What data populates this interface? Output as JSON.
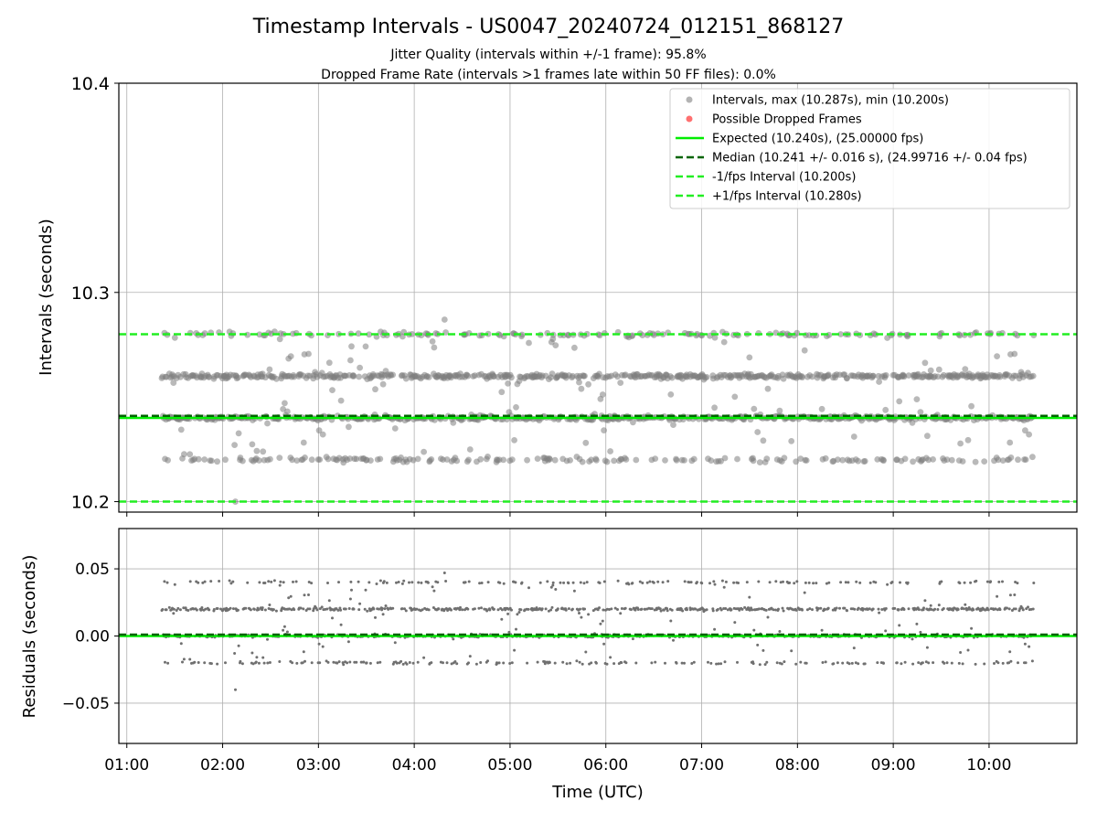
{
  "chart_data": [
    {
      "type": "scatter",
      "title": "Timestamp Intervals - US0047_20240724_012151_868127",
      "subtitle_lines": [
        "Jitter Quality (intervals within +/-1 frame): 95.8%",
        "Dropped Frame Rate (intervals >1 frames late within 50 FF files): 0.0%"
      ],
      "ylabel": "Intervals (seconds)",
      "ylim": [
        10.195,
        10.4
      ],
      "yticks": [
        "10.2",
        "10.3",
        "10.4"
      ],
      "grid": true,
      "legend_position": "upper-right",
      "legend": [
        "Intervals, max (10.287s), min (10.200s)",
        "Possible Dropped Frames",
        "Expected (10.240s), (25.00000 fps)",
        "Median (10.241 +/- 0.016 s), (24.99716 +/- 0.04 fps)",
        "-1/fps Interval (10.200s)",
        "+1/fps Interval (10.280s)"
      ],
      "time_range": [
        "01:22",
        "10:28"
      ],
      "interval_levels": [
        10.22,
        10.24,
        10.26,
        10.28
      ],
      "interval_max": 10.287,
      "interval_min": 10.2,
      "expected": 10.24,
      "median": 10.241,
      "minus_1_fps_interval": 10.2,
      "plus_1_fps_interval": 10.28,
      "dropped_frames_count": 0,
      "colors": {
        "intervals": "#808080",
        "dropped": "#ff4040",
        "expected": "#00ee00",
        "median": "#006400",
        "fps_bounds": "#22ee22"
      }
    },
    {
      "type": "scatter",
      "ylabel": "Residuals (seconds)",
      "xlabel": "Time (UTC)",
      "ylim": [
        -0.08,
        0.08
      ],
      "yticks": [
        "−0.05",
        "0.00",
        "0.05"
      ],
      "xlim": [
        "00:55",
        "10:55"
      ],
      "xticks": [
        "01:00",
        "02:00",
        "03:00",
        "04:00",
        "05:00",
        "06:00",
        "07:00",
        "08:00",
        "09:00",
        "10:00"
      ],
      "residual_levels": [
        -0.02,
        0.0,
        0.02,
        0.04
      ],
      "residual_min": -0.04,
      "zero_line": 0.0,
      "median_residual": 0.001,
      "grid": true
    }
  ]
}
